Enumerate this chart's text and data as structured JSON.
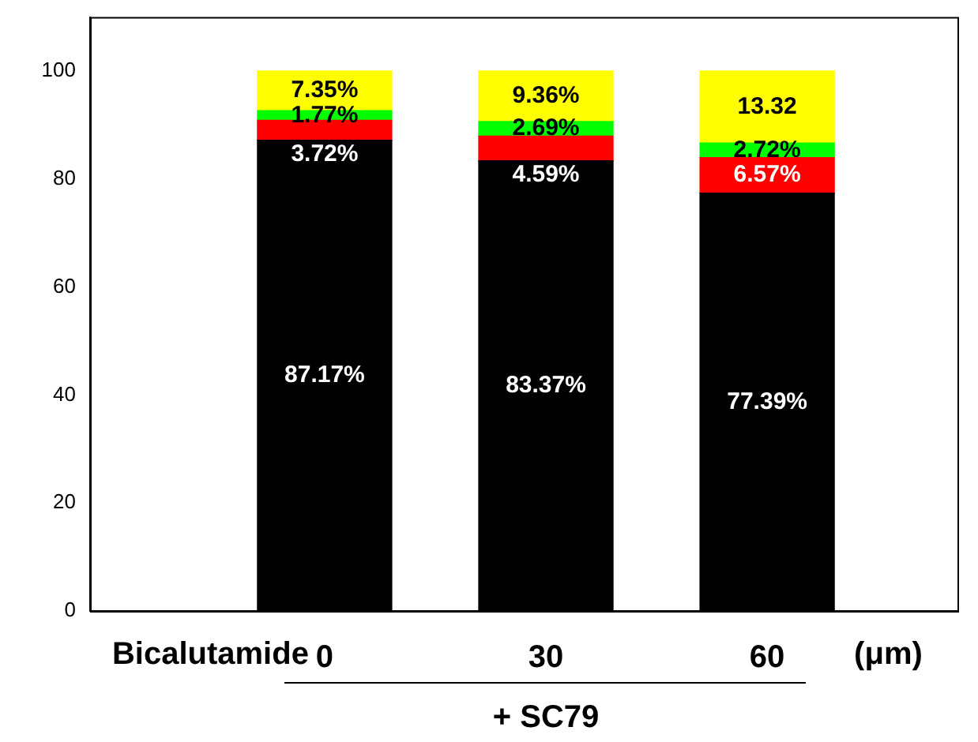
{
  "chart_data": {
    "type": "bar",
    "stacked": true,
    "categories": [
      "0",
      "30",
      "60"
    ],
    "xlabel": "Bicalutamide",
    "series": [
      {
        "color": "#000000",
        "values": [
          87.17,
          83.37,
          77.39
        ],
        "value_labels": [
          "87.17%",
          "83.37%",
          "77.39%"
        ]
      },
      {
        "color": "#ff0000",
        "values": [
          3.72,
          4.59,
          6.57
        ],
        "value_labels": [
          "3.72%",
          "4.59%",
          "6.57%"
        ]
      },
      {
        "color": "#00ff00",
        "values": [
          1.77,
          2.69,
          2.72
        ],
        "value_labels": [
          "1.77%",
          "2.69%",
          "2.72%"
        ]
      },
      {
        "color": "#ffff00",
        "values": [
          7.35,
          9.36,
          13.32
        ],
        "value_labels": [
          "7.35%",
          "9.36%",
          "13.32"
        ]
      }
    ],
    "ylim": [
      0,
      110
    ],
    "yticks": [
      0,
      20,
      40,
      60,
      80,
      100
    ],
    "grid": false,
    "legend": false,
    "annotations": [
      "(μm)",
      "+ SC79"
    ]
  }
}
